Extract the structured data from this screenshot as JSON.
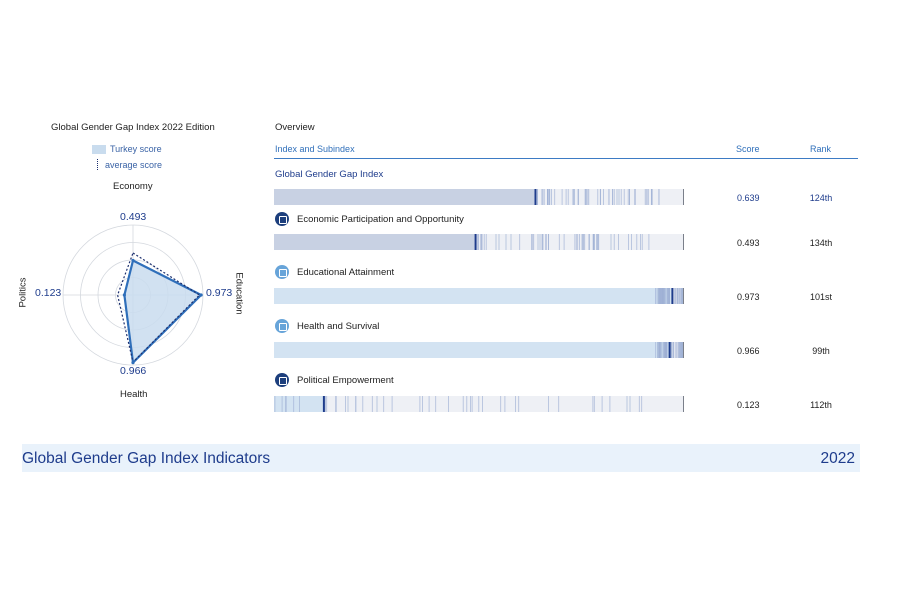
{
  "radar": {
    "title_bold": "Global Gender Gap Index",
    "title_rest": " 2022 Edition",
    "legend_turkey": "Turkey score",
    "legend_average": "average score",
    "axes": {
      "economy": {
        "label": "Economy",
        "value": "0.493"
      },
      "education": {
        "label": "Education",
        "value": "0.973"
      },
      "health": {
        "label": "Health",
        "value": "0.966"
      },
      "politics": {
        "label": "Politics",
        "value": "0.123"
      }
    }
  },
  "overview": {
    "title": "Overview",
    "col_index": "Index and Subindex",
    "col_score": "Score",
    "col_rank": "Rank",
    "rows": [
      {
        "label": "Global Gender Gap Index",
        "score": "0.639",
        "rank": "124th",
        "icon": "index"
      },
      {
        "label": "Economic Participation and Opportunity",
        "score": "0.493",
        "rank": "134th",
        "icon": "economy-icon"
      },
      {
        "label": "Educational Attainment",
        "score": "0.973",
        "rank": "101st",
        "icon": "education-icon"
      },
      {
        "label": "Health and Survival",
        "score": "0.966",
        "rank": "99th",
        "icon": "health-icon"
      },
      {
        "label": "Political Empowerment",
        "score": "0.123",
        "rank": "112th",
        "icon": "politics-icon"
      }
    ]
  },
  "footer": {
    "title": "Global Gender Gap Index Indicators",
    "year": "2022"
  },
  "colors": {
    "accent": "#1e3c8c",
    "fill": "#c9dcee",
    "light_blue": "#3d7bc4",
    "footer_bg": "#e9f2fb"
  },
  "chart_data": [
    {
      "type": "radar",
      "title": "Global Gender Gap Index 2022 Edition",
      "categories": [
        "Economy",
        "Education",
        "Health",
        "Politics"
      ],
      "series": [
        {
          "name": "Turkey score",
          "values": [
            0.493,
            0.973,
            0.966,
            0.123
          ]
        },
        {
          "name": "average score",
          "values": [
            0.6,
            0.95,
            0.96,
            0.22
          ]
        }
      ],
      "ylim": [
        0,
        1
      ]
    },
    {
      "type": "bar",
      "categories": [
        "Global Gender Gap Index",
        "Economic Participation and Opportunity",
        "Educational Attainment",
        "Health and Survival",
        "Political Empowerment"
      ],
      "values": [
        0.639,
        0.493,
        0.973,
        0.966,
        0.123
      ],
      "ranks": [
        "124th",
        "134th",
        "101st",
        "99th",
        "112th"
      ],
      "xlim": [
        0,
        1
      ]
    }
  ]
}
